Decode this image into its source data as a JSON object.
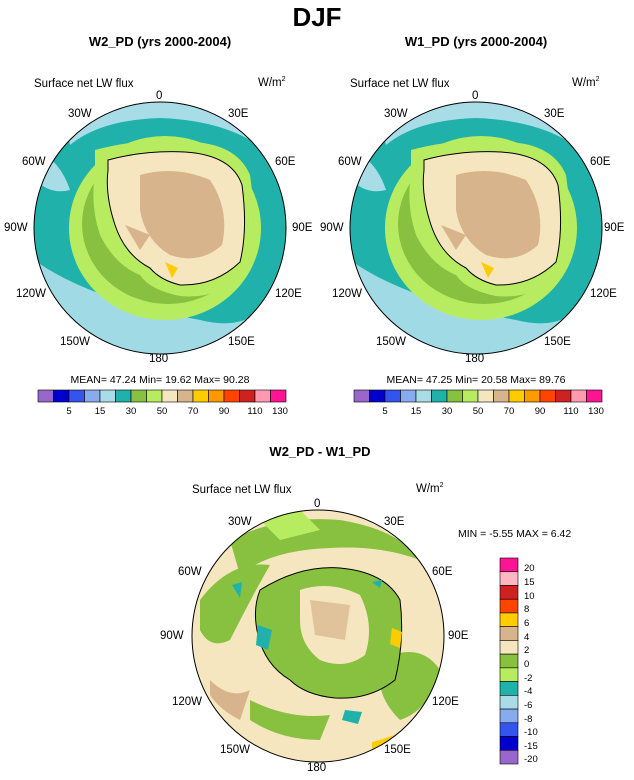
{
  "title": "DJF",
  "panels": [
    {
      "title": "W2_PD (yrs 2000-2004)",
      "field": "Surface net LW flux",
      "units_main": "W/m",
      "units_sup": "2",
      "stats": "MEAN=  47.24  Min=  19.62  Max=  90.28",
      "colorbar_ticks": [
        "5",
        "15",
        "30",
        "50",
        "70",
        "90",
        "110",
        "130"
      ]
    },
    {
      "title": "W1_PD (yrs 2000-2004)",
      "field": "Surface net LW flux",
      "units_main": "W/m",
      "units_sup": "2",
      "stats": "MEAN=  47.25  Min=  20.58  Max=  89.76",
      "colorbar_ticks": [
        "5",
        "15",
        "30",
        "50",
        "70",
        "90",
        "110",
        "130"
      ]
    },
    {
      "title": "W2_PD - W1_PD",
      "field": "Surface net LW flux",
      "units_main": "W/m",
      "units_sup": "2",
      "stats": "MIN =  -5.55 MAX =  6.42",
      "colorbar_ticks": [
        "20",
        "15",
        "10",
        "8",
        "6",
        "4",
        "2",
        "0",
        "-2",
        "-4",
        "-6",
        "-8",
        "-10",
        "-15",
        "-20"
      ]
    }
  ],
  "lon_labels": [
    "0",
    "30E",
    "60E",
    "90E",
    "120E",
    "150E",
    "180",
    "150W",
    "120W",
    "90W",
    "60W",
    "30W"
  ],
  "colors": {
    "abs_scale": [
      "#9966cc",
      "#0000cc",
      "#3355ee",
      "#88aaee",
      "#a8dde8",
      "#20b2aa",
      "#88c040",
      "#b8ec60",
      "#f5e6c0",
      "#d8b48c",
      "#ffcc00",
      "#ff9900",
      "#ff4400",
      "#cc2222",
      "#ff9ab0",
      "#ff1493"
    ],
    "diff_scale": [
      "#ff1493",
      "#ffb6c1",
      "#cc2222",
      "#ff4400",
      "#ffcc00",
      "#d8b48c",
      "#f5e6c0",
      "#88c040",
      "#b8ec60",
      "#20b2aa",
      "#a8dde8",
      "#88aaee",
      "#3355ee",
      "#0000cc",
      "#9966cc"
    ]
  }
}
